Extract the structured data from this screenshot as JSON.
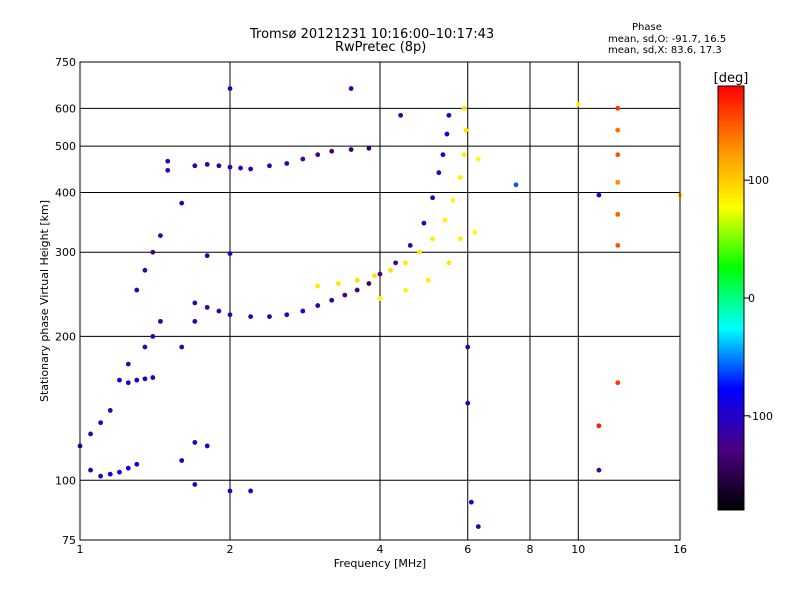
{
  "header": {
    "title_line1": "Tromsø 20121231 10:16:00–10:17:43",
    "title_line2": "RwPretec (8p)",
    "phase_title": "Phase",
    "stat_o": "mean, sd,O: -91.7, 16.5",
    "stat_x": "mean, sd,X:  83.6, 17.3"
  },
  "colorbar": {
    "title": "[deg]",
    "ticks": [
      {
        "value": 100,
        "label": "100"
      },
      {
        "value": 0,
        "label": "0"
      },
      {
        "value": -100,
        "label": "-100"
      }
    ],
    "range": [
      -180,
      180
    ],
    "colors": [
      "#000000",
      "#4b0082",
      "#0000ff",
      "#00ffff",
      "#00ff00",
      "#ffff00",
      "#ff8c00",
      "#ff0000"
    ]
  },
  "chart_data": {
    "type": "scatter",
    "xlabel": "Frequency [MHz]",
    "ylabel": "Stationary phase Virtual Height [km]",
    "xscale": "log",
    "yscale": "log",
    "xlim": [
      1,
      16
    ],
    "ylim": [
      75,
      750
    ],
    "xticks": [
      1,
      2,
      4,
      6,
      8,
      10,
      16
    ],
    "yticks": [
      75,
      100,
      200,
      300,
      400,
      500,
      600,
      750
    ],
    "grid": true,
    "color_by": "phase_deg",
    "series": [
      {
        "points": [
          [
            1.05,
            105,
            -110
          ],
          [
            1.1,
            102,
            -105
          ],
          [
            1.15,
            103,
            -95
          ],
          [
            1.2,
            104,
            -85
          ],
          [
            1.25,
            106,
            -80
          ],
          [
            1.3,
            108,
            -90
          ],
          [
            1.0,
            118,
            -105
          ],
          [
            1.05,
            125,
            -110
          ],
          [
            1.1,
            132,
            -100
          ],
          [
            1.15,
            140,
            -105
          ],
          [
            1.2,
            162,
            -95
          ],
          [
            1.25,
            160,
            -100
          ],
          [
            1.3,
            162,
            -90
          ],
          [
            1.35,
            163,
            -100
          ],
          [
            1.4,
            164,
            -105
          ],
          [
            1.25,
            175,
            -110
          ],
          [
            1.35,
            190,
            -115
          ],
          [
            1.4,
            200,
            -110
          ],
          [
            1.45,
            215,
            -115
          ],
          [
            1.3,
            250,
            -110
          ],
          [
            1.35,
            275,
            -115
          ],
          [
            1.4,
            300,
            -120
          ],
          [
            1.45,
            325,
            -115
          ],
          [
            1.5,
            445,
            -110
          ],
          [
            1.5,
            465,
            -105
          ],
          [
            1.7,
            455,
            -110
          ],
          [
            1.8,
            458,
            -112
          ],
          [
            1.9,
            455,
            -108
          ],
          [
            2.0,
            452,
            -115
          ],
          [
            2.1,
            450,
            -110
          ],
          [
            2.2,
            448,
            -112
          ],
          [
            2.4,
            455,
            -115
          ],
          [
            2.6,
            460,
            -118
          ],
          [
            2.8,
            470,
            -125
          ],
          [
            3.0,
            480,
            -130
          ],
          [
            3.2,
            488,
            -135
          ],
          [
            3.5,
            492,
            -140
          ],
          [
            3.8,
            495,
            -140
          ],
          [
            1.7,
            235,
            -115
          ],
          [
            1.8,
            230,
            -112
          ],
          [
            1.9,
            226,
            -110
          ],
          [
            2.0,
            222,
            -108
          ],
          [
            2.2,
            220,
            -106
          ],
          [
            2.4,
            220,
            -104
          ],
          [
            2.6,
            222,
            -100
          ],
          [
            2.8,
            226,
            -98
          ],
          [
            3.0,
            232,
            -110
          ],
          [
            3.2,
            238,
            -120
          ],
          [
            3.4,
            244,
            -130
          ],
          [
            3.6,
            250,
            -135
          ],
          [
            3.8,
            258,
            -140
          ],
          [
            4.0,
            270,
            -125
          ],
          [
            4.3,
            285,
            -118
          ],
          [
            4.6,
            310,
            -112
          ],
          [
            4.9,
            345,
            -110
          ],
          [
            5.1,
            390,
            -108
          ],
          [
            5.25,
            440,
            -105
          ],
          [
            5.35,
            480,
            -100
          ],
          [
            5.45,
            530,
            -98
          ],
          [
            5.5,
            580,
            -95
          ],
          [
            3.0,
            255,
            85
          ],
          [
            3.3,
            258,
            88
          ],
          [
            3.6,
            262,
            90
          ],
          [
            3.9,
            268,
            92
          ],
          [
            4.2,
            275,
            90
          ],
          [
            4.5,
            285,
            88
          ],
          [
            4.8,
            300,
            86
          ],
          [
            5.1,
            320,
            84
          ],
          [
            5.4,
            350,
            82
          ],
          [
            5.6,
            385,
            80
          ],
          [
            5.8,
            430,
            82
          ],
          [
            5.9,
            480,
            85
          ],
          [
            5.95,
            540,
            88
          ],
          [
            5.9,
            600,
            90
          ],
          [
            4.0,
            240,
            80
          ],
          [
            4.5,
            250,
            82
          ],
          [
            5.0,
            262,
            84
          ],
          [
            5.5,
            285,
            86
          ],
          [
            5.8,
            320,
            85
          ],
          [
            6.2,
            330,
            80
          ],
          [
            6.3,
            470,
            75
          ],
          [
            1.8,
            295,
            -110
          ],
          [
            2.0,
            298,
            -108
          ],
          [
            1.6,
            380,
            -110
          ],
          [
            1.6,
            190,
            -115
          ],
          [
            1.7,
            215,
            -110
          ],
          [
            1.7,
            120,
            -105
          ],
          [
            1.8,
            118,
            -100
          ],
          [
            1.6,
            110,
            -100
          ],
          [
            1.7,
            98,
            -110
          ],
          [
            2.0,
            95,
            -105
          ],
          [
            2.2,
            95,
            -100
          ],
          [
            2.0,
            660,
            -108
          ],
          [
            3.5,
            660,
            -120
          ],
          [
            4.4,
            580,
            -120
          ],
          [
            6.0,
            190,
            -110
          ],
          [
            6.0,
            145,
            -105
          ],
          [
            6.1,
            90,
            -100
          ],
          [
            6.3,
            80,
            -110
          ],
          [
            7.5,
            415,
            -60
          ],
          [
            11.0,
            395,
            -100
          ],
          [
            11.0,
            130,
            170
          ],
          [
            11.0,
            105,
            -120
          ],
          [
            12.0,
            600,
            160
          ],
          [
            12.0,
            540,
            140
          ],
          [
            12.0,
            480,
            150
          ],
          [
            12.0,
            420,
            130
          ],
          [
            12.0,
            360,
            145
          ],
          [
            12.0,
            310,
            150
          ],
          [
            12.0,
            160,
            160
          ],
          [
            16.0,
            395,
            90
          ],
          [
            10.0,
            612,
            85
          ]
        ]
      }
    ]
  }
}
